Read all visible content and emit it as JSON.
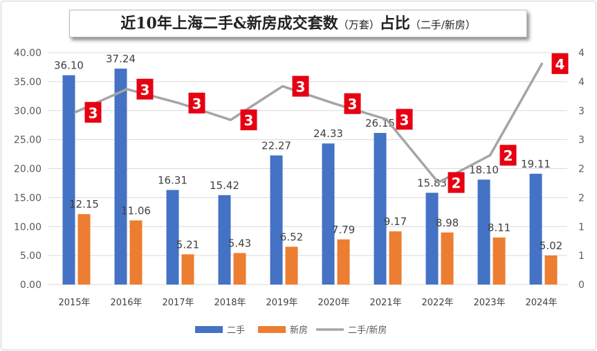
{
  "chart_data": {
    "type": "bar+line",
    "title_main": "近10年上海二手&新房成交套数",
    "title_unit": "（万套）",
    "title_ratio": "占比",
    "title_ratio_note": "（二手/新房）",
    "categories": [
      "2015年",
      "2016年",
      "2017年",
      "2018年",
      "2019年",
      "2020年",
      "2021年",
      "2022年",
      "2023年",
      "2024年"
    ],
    "series": [
      {
        "name": "二手",
        "type": "bar",
        "axis": "left",
        "color": "#4472C4",
        "values": [
          36.1,
          37.24,
          16.31,
          15.42,
          22.27,
          24.33,
          26.15,
          15.83,
          18.1,
          19.11
        ],
        "labels": [
          "36.10",
          "37.24",
          "16.31",
          "15.42",
          "22.27",
          "24.33",
          "26.15",
          "15.83",
          "18.10",
          "19.11"
        ]
      },
      {
        "name": "新房",
        "type": "bar",
        "axis": "left",
        "color": "#ED7D31",
        "values": [
          12.15,
          11.06,
          5.21,
          5.43,
          6.52,
          7.79,
          9.17,
          8.98,
          8.11,
          5.02
        ],
        "labels": [
          "12.15",
          "11.06",
          "5.21",
          "5.43",
          "6.52",
          "7.79",
          "9.17",
          "8.98",
          "8.11",
          "5.02"
        ]
      },
      {
        "name": "二手/新房",
        "type": "line",
        "axis": "right",
        "color": "#A5A5A5",
        "values": [
          2.97,
          3.37,
          3.13,
          2.84,
          3.42,
          3.12,
          2.85,
          1.76,
          2.23,
          3.81
        ],
        "labels": [
          "3",
          "3",
          "3",
          "3",
          "3",
          "3",
          "3",
          "2",
          "2",
          "4"
        ],
        "label_color": "#E60012"
      }
    ],
    "y_left": {
      "min": 0,
      "max": 40,
      "ticks": [
        "0.00",
        "5.00",
        "10.00",
        "15.00",
        "20.00",
        "25.00",
        "30.00",
        "35.00",
        "40.00"
      ]
    },
    "y_right": {
      "min": 0,
      "max": 4,
      "ticks": [
        "0",
        "1",
        "1",
        "2",
        "2",
        "3",
        "3",
        "4",
        "4"
      ]
    },
    "grid": true,
    "legend": "bottom"
  }
}
